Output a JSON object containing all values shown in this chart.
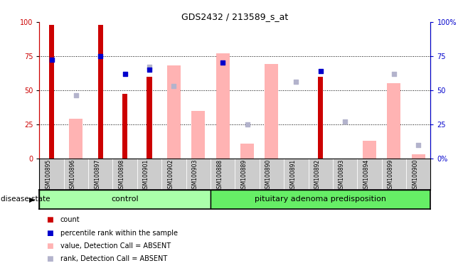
{
  "title": "GDS2432 / 213589_s_at",
  "samples": [
    "GSM100895",
    "GSM100896",
    "GSM100897",
    "GSM100898",
    "GSM100901",
    "GSM100902",
    "GSM100903",
    "GSM100888",
    "GSM100889",
    "GSM100890",
    "GSM100891",
    "GSM100892",
    "GSM100893",
    "GSM100894",
    "GSM100899",
    "GSM100900"
  ],
  "count": [
    98,
    0,
    98,
    47,
    60,
    0,
    0,
    0,
    0,
    0,
    0,
    60,
    0,
    0,
    0,
    0
  ],
  "percentile_rank": [
    72,
    0,
    75,
    62,
    65,
    0,
    0,
    70,
    0,
    0,
    0,
    64,
    0,
    0,
    0,
    0
  ],
  "value_absent": [
    0,
    29,
    0,
    0,
    0,
    68,
    35,
    77,
    11,
    69,
    0,
    0,
    0,
    13,
    55,
    3
  ],
  "rank_absent": [
    0,
    46,
    0,
    0,
    67,
    53,
    0,
    0,
    25,
    0,
    56,
    0,
    27,
    0,
    62,
    10
  ],
  "control_count": 7,
  "disease_count": 9,
  "control_label": "control",
  "disease_label": "pituitary adenoma predisposition",
  "disease_state_label": "disease state",
  "legend": [
    "count",
    "percentile rank within the sample",
    "value, Detection Call = ABSENT",
    "rank, Detection Call = ABSENT"
  ],
  "bar_color_count": "#cc0000",
  "bar_color_rank": "#0000cc",
  "bar_color_value_absent": "#ffb3b3",
  "bar_color_rank_absent": "#b3b3cc",
  "yticks_left": [
    0,
    25,
    50,
    75,
    100
  ],
  "ylim": [
    0,
    100
  ],
  "control_bg": "#aaffaa",
  "disease_bg": "#66ee66",
  "xlabel_area_bg": "#cccccc"
}
